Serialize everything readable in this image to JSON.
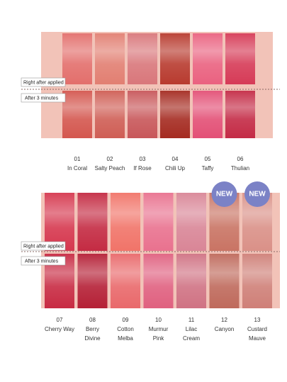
{
  "panels": [
    {
      "label_top": "Right after applied",
      "label_bottom": "After 3 minutes",
      "swatches": [
        {
          "number": "01",
          "name": [
            "In Coral"
          ],
          "colors": [
            "#e36f6c",
            "#d4574f"
          ]
        },
        {
          "number": "02",
          "name": [
            "Salty Peach"
          ],
          "colors": [
            "#e27f72",
            "#cf5e55"
          ]
        },
        {
          "number": "03",
          "name": [
            "If Rose"
          ],
          "colors": [
            "#d9777b",
            "#c8575a"
          ]
        },
        {
          "number": "04",
          "name": [
            "Chili Up"
          ],
          "colors": [
            "#b83b2f",
            "#a52b21"
          ]
        },
        {
          "number": "05",
          "name": [
            "Taffy"
          ],
          "colors": [
            "#ea6280",
            "#e35076"
          ]
        },
        {
          "number": "06",
          "name": [
            "Thulian"
          ],
          "colors": [
            "#d63b57",
            "#c42b46"
          ]
        }
      ]
    },
    {
      "label_top": "Right after applied",
      "label_bottom": "After 3 minutes",
      "swatches": [
        {
          "number": "07",
          "name": [
            "Cherry Way"
          ],
          "colors": [
            "#d6384f",
            "#c82b43"
          ]
        },
        {
          "number": "08",
          "name": [
            "Berry",
            "Divine"
          ],
          "colors": [
            "#c42b43",
            "#b52036"
          ]
        },
        {
          "number": "09",
          "name": [
            "Cotton",
            "Melba"
          ],
          "colors": [
            "#f17469",
            "#e9696b"
          ]
        },
        {
          "number": "10",
          "name": [
            "Murmur",
            "Pink"
          ],
          "colors": [
            "#e9728f",
            "#e06180"
          ]
        },
        {
          "number": "11",
          "name": [
            "Lilac",
            "Cream"
          ],
          "colors": [
            "#d98697",
            "#d07384"
          ]
        },
        {
          "number": "12",
          "name": [
            "Canyon"
          ],
          "colors": [
            "#c97464",
            "#bf6a5c"
          ],
          "badge": "NEW"
        },
        {
          "number": "13",
          "name": [
            "Custard",
            "Mauve"
          ],
          "colors": [
            "#da9188",
            "#cf8078"
          ],
          "badge": "NEW"
        }
      ]
    }
  ]
}
